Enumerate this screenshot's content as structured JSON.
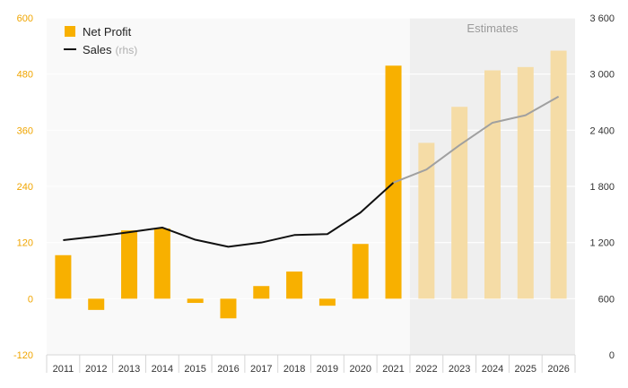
{
  "chart_data": {
    "type": "bar",
    "categories": [
      "2011",
      "2012",
      "2013",
      "2014",
      "2015",
      "2016",
      "2017",
      "2018",
      "2019",
      "2020",
      "2021",
      "2022",
      "2023",
      "2024",
      "2025",
      "2026"
    ],
    "estimate_from": "2022",
    "estimates_label": "Estimates",
    "series": [
      {
        "name": "Net Profit",
        "type": "bar",
        "axis": "left",
        "values": [
          93,
          -24,
          146,
          150,
          -9,
          -42,
          27,
          58,
          -15,
          117,
          498,
          333,
          410,
          488,
          495,
          530
        ]
      },
      {
        "name": "Sales",
        "name_note": "(rhs)",
        "type": "line",
        "axis": "right",
        "values": [
          1225,
          1265,
          1310,
          1360,
          1230,
          1155,
          1200,
          1280,
          1290,
          1520,
          1840,
          1980,
          2240,
          2480,
          2560,
          2760
        ]
      }
    ],
    "ylim_left": [
      -120,
      600
    ],
    "yticks_left": [
      "-120",
      "0",
      "120",
      "240",
      "360",
      "480",
      "600"
    ],
    "ylim_right": [
      0,
      3600
    ],
    "yticks_right": [
      "0",
      "600",
      "1 200",
      "1 800",
      "2 400",
      "3 000",
      "3 600"
    ],
    "grid": true,
    "legend_position": "top-left",
    "colors": {
      "bar": "#f8b000",
      "bar_estimate": "#f5dca6",
      "line": "#111111",
      "line_estimate": "#a0a0a0",
      "estimate_band": "#efefef",
      "plot_bg": "#f9f9f9",
      "grid": "#ffffff",
      "left_tick": "#f0a500"
    }
  }
}
